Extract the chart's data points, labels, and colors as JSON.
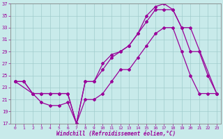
{
  "xlabel": "Windchill (Refroidissement éolien,°C)",
  "background_color": "#c8eaea",
  "line_color": "#990099",
  "xlim": [
    -0.5,
    23.5
  ],
  "ylim": [
    17,
    37
  ],
  "yticks": [
    17,
    19,
    21,
    23,
    25,
    27,
    29,
    31,
    33,
    35,
    37
  ],
  "xticks": [
    0,
    1,
    2,
    3,
    4,
    5,
    6,
    7,
    8,
    9,
    10,
    11,
    12,
    13,
    14,
    15,
    16,
    17,
    18,
    19,
    20,
    21,
    22,
    23
  ],
  "line1_x": [
    0,
    1,
    2,
    3,
    4,
    5,
    6,
    7,
    8,
    9,
    10,
    11,
    12,
    13,
    14,
    15,
    16,
    17,
    18,
    19,
    20,
    21,
    22,
    23
  ],
  "line1_y": [
    24,
    24,
    22,
    20.5,
    20,
    20,
    20.5,
    17,
    21,
    21,
    22,
    24,
    26,
    26,
    28,
    30,
    32,
    33,
    33,
    29,
    25,
    22,
    22,
    22
  ],
  "line2_x": [
    0,
    1,
    2,
    3,
    4,
    5,
    6,
    7,
    8,
    9,
    10,
    11,
    12,
    13,
    14,
    15,
    16,
    17,
    18,
    19,
    20,
    21,
    22,
    23
  ],
  "line2_y": [
    24,
    24,
    22,
    22,
    22,
    22,
    22,
    17,
    24,
    24,
    27,
    28.5,
    29,
    30,
    32,
    35,
    36.5,
    37,
    36,
    33,
    29,
    29,
    25,
    22
  ],
  "line3_x": [
    0,
    2,
    3,
    4,
    5,
    6,
    7,
    8,
    9,
    10,
    11,
    12,
    13,
    14,
    15,
    16,
    17,
    18,
    19,
    20,
    23
  ],
  "line3_y": [
    24,
    22,
    22,
    22,
    22,
    22,
    17,
    24,
    24,
    26,
    28,
    29,
    30,
    32,
    34,
    36,
    36,
    36,
    33,
    33,
    22
  ]
}
